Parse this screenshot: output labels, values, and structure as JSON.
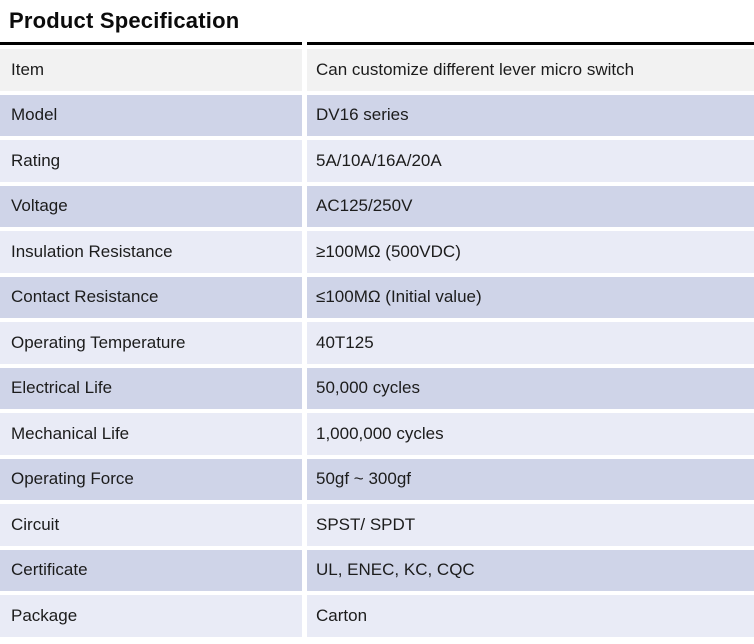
{
  "page": {
    "title": "Product Specification"
  },
  "table": {
    "columns": [
      "label",
      "value"
    ],
    "rows": [
      {
        "label": "Item",
        "value": "Can customize different lever micro switch"
      },
      {
        "label": "Model",
        "value": "DV16 series"
      },
      {
        "label": "Rating",
        "value": "5A/10A/16A/20A"
      },
      {
        "label": "Voltage",
        "value": "AC125/250V"
      },
      {
        "label": "Insulation Resistance",
        "value": "≥100MΩ (500VDC)"
      },
      {
        "label": "Contact Resistance",
        "value": "≤100MΩ (Initial value)"
      },
      {
        "label": "Operating Temperature",
        "value": "40T125"
      },
      {
        "label": "Electrical Life",
        "value": "50,000 cycles"
      },
      {
        "label": "Mechanical Life",
        "value": "1,000,000 cycles"
      },
      {
        "label": "Operating Force",
        "value": "50gf ~ 300gf"
      },
      {
        "label": "Circuit",
        "value": "SPST/ SPDT"
      },
      {
        "label": "Certificate",
        "value": "UL, ENEC, KC, CQC"
      },
      {
        "label": "Package",
        "value": "Carton"
      }
    ],
    "colors": {
      "header_row_bg": "#f2f2f2",
      "row_dark_bg": "#cfd4e8",
      "row_light_bg": "#e9ebf6",
      "top_border": "#000000",
      "text": "#1c1c1c"
    }
  }
}
